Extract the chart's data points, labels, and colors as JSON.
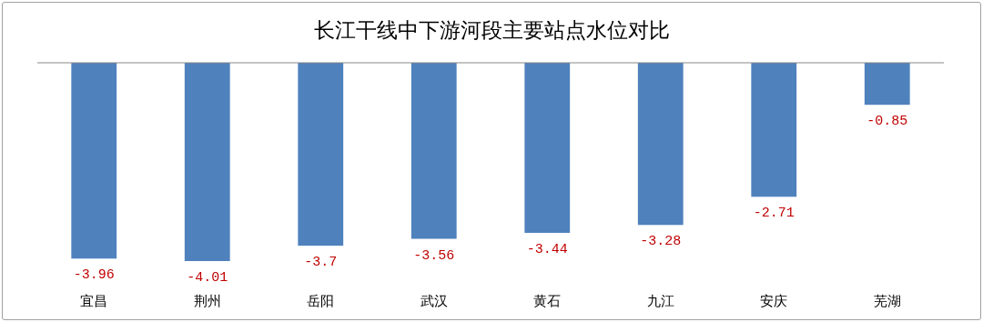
{
  "chart_data": {
    "type": "bar",
    "title": "长江干线中下游河段主要站点水位对比",
    "categories": [
      "宜昌",
      "荆州",
      "岳阳",
      "武汉",
      "黄石",
      "九江",
      "安庆",
      "芜湖"
    ],
    "values": [
      -3.96,
      -4.01,
      -3.7,
      -3.56,
      -3.44,
      -3.28,
      -2.71,
      -0.85
    ],
    "color": "#4f81bd",
    "data_labels": true
  }
}
